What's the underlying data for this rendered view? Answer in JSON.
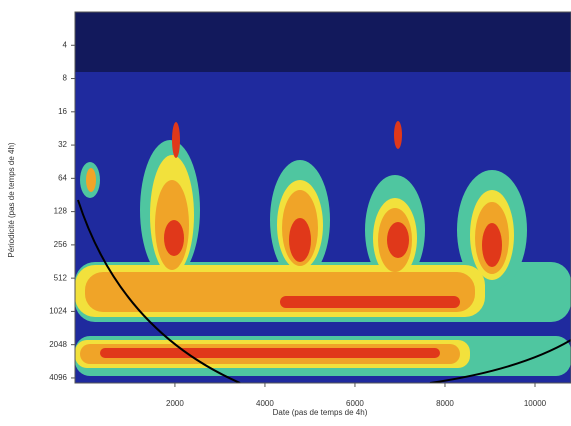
{
  "chart_data": {
    "type": "wavelet-heatmap",
    "xlabel": "Date (pas de temps de 4h)",
    "ylabel": "Périodicité (pas de temps de 4h)",
    "xlim": [
      -220,
      10800
    ],
    "xticks": [
      2000,
      4000,
      6000,
      8000,
      10000
    ],
    "ylim": [
      2,
      4550
    ],
    "yticks": [
      4,
      8,
      16,
      32,
      64,
      128,
      256,
      512,
      1024,
      2048,
      4096
    ],
    "y_log": true,
    "y_reversed": true
  }
}
